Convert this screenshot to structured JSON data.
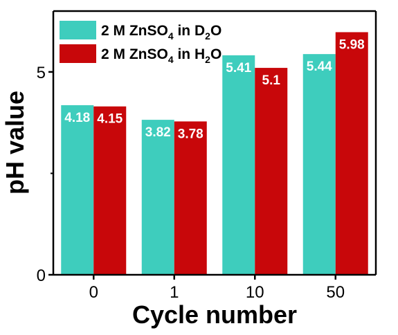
{
  "chart_data": {
    "type": "bar",
    "xlabel": "Cycle number",
    "ylabel": "pH value",
    "categories": [
      "0",
      "1",
      "10",
      "50"
    ],
    "ylim": [
      0,
      6.5
    ],
    "y_ticks": [
      0,
      5
    ],
    "y_tick_labels": [
      "0",
      "5"
    ],
    "series": [
      {
        "name": "2 M ZnSO4 in D2O",
        "legend_parts": {
          "a": "2 M ZnSO",
          "a_sub": "4",
          "b": " in D",
          "b_sub": "2",
          "c": "O"
        },
        "color": "#3ecdbd",
        "values": [
          4.18,
          3.82,
          5.41,
          5.44
        ],
        "labels": [
          "4.18",
          "3.82",
          "5.41",
          "5.44"
        ]
      },
      {
        "name": "2 M ZnSO4 in H2O",
        "legend_parts": {
          "a": "2 M ZnSO",
          "a_sub": "4",
          "b": " in H",
          "b_sub": "2",
          "c": "O"
        },
        "color": "#c8070a",
        "values": [
          4.15,
          3.78,
          5.1,
          5.98
        ],
        "labels": [
          "4.15",
          "3.78",
          "5.1",
          "5.98"
        ]
      }
    ],
    "legend_position": "top-left",
    "grid": false
  }
}
